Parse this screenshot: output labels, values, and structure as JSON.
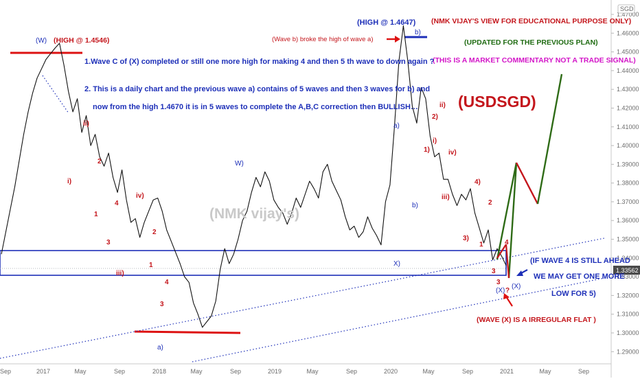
{
  "chart_data": {
    "type": "line",
    "title": "(USDSGD)",
    "ylim": [
      1.2835,
      1.4755
    ],
    "x_ticks": [
      "Sep",
      "2017",
      "May",
      "Sep",
      "2018",
      "May",
      "Sep",
      "2019",
      "May",
      "Sep",
      "2020",
      "May",
      "Sep",
      "2021",
      "May",
      "Sep"
    ],
    "y_ticks": [
      "1.47000",
      "1.46000",
      "1.45000",
      "1.44000",
      "1.43000",
      "1.42000",
      "1.41000",
      "1.40000",
      "1.39000",
      "1.38000",
      "1.37000",
      "1.36000",
      "1.35000",
      "1.34000",
      "1.33000",
      "1.32000",
      "1.31000",
      "1.30000",
      "1.29000"
    ],
    "currency_label": "SGD",
    "last_price": "1.33562",
    "series": [
      {
        "values": [
          1.342,
          1.354,
          1.366,
          1.378,
          1.392,
          1.406,
          1.418,
          1.428,
          1.436,
          1.441,
          1.446,
          1.449,
          1.452,
          1.4546,
          1.443,
          1.429,
          1.418,
          1.425,
          1.407,
          1.416,
          1.4,
          1.406,
          1.394,
          1.389,
          1.396,
          1.383,
          1.375,
          1.387,
          1.371,
          1.359,
          1.361,
          1.351,
          1.359,
          1.365,
          1.371,
          1.372,
          1.365,
          1.355,
          1.349,
          1.343,
          1.337,
          1.33,
          1.327,
          1.316,
          1.31,
          1.303,
          1.306,
          1.309,
          1.317,
          1.334,
          1.345,
          1.337,
          1.342,
          1.35,
          1.36,
          1.365,
          1.375,
          1.383,
          1.378,
          1.386,
          1.381,
          1.371,
          1.367,
          1.364,
          1.358,
          1.364,
          1.372,
          1.367,
          1.374,
          1.381,
          1.377,
          1.372,
          1.386,
          1.39,
          1.381,
          1.376,
          1.371,
          1.362,
          1.355,
          1.357,
          1.351,
          1.354,
          1.362,
          1.356,
          1.352,
          1.347,
          1.37,
          1.379,
          1.41,
          1.445,
          1.464,
          1.445,
          1.421,
          1.412,
          1.431,
          1.425,
          1.405,
          1.394,
          1.396,
          1.382,
          1.382,
          1.374,
          1.368,
          1.374,
          1.371,
          1.377,
          1.364,
          1.356,
          1.348,
          1.355,
          1.339,
          1.345,
          1.341,
          1.336
        ]
      }
    ]
  },
  "labels": {
    "wave_w_top": "(W)",
    "high_w": "(HIGH @ 1.4546)",
    "high_b": "(HIGH @ 1.4647)",
    "wave_b_broke": "(Wave b) broke the high of wave a)",
    "b_top": "b)",
    "note1": "1.Wave C of (X) completed or still one more high for making 4 and then 5 th wave to down again ?",
    "note2_line1": "2. This is a daily chart and the previous wave a) contains of 5 waves and then 3 waves for b) and",
    "note2_line2": "now from the high 1.4670 it is in 5 waves to complete the A,B,C correction then BULLISH…",
    "edu": "(NMK VIJAY'S VIEW FOR EDUCATIONAL PURPOSE ONLY)",
    "updated": "(UPDATED FOR THE PREVIOUS PLAN)",
    "commentary": "(THIS IS A MARKET COMMENTARY NOT A TRADE SIGNAL)",
    "watermark": "(NMK vijay's)",
    "if_wave4_line1": "(IF  WAVE 4 IS STILL AHEAD",
    "if_wave4_line2": "WE MAY GET ONE MORE",
    "if_wave4_line3": "LOW FOR 5)",
    "irregular_flat": "(WAVE (X) IS A IRREGULAR FLAT )",
    "w_mid": "W)",
    "a_low": "a)",
    "x_mid": "X)",
    "a_2020": "a)",
    "b_2020": "b)",
    "x_end1": "(X)",
    "x_end2": "(X)",
    "red_waves": [
      {
        "t": "ii)"
      },
      {
        "t": "i)"
      },
      {
        "t": "2"
      },
      {
        "t": "1"
      },
      {
        "t": "4"
      },
      {
        "t": "3"
      },
      {
        "t": "iv)"
      },
      {
        "t": "iii)"
      },
      {
        "t": "2"
      },
      {
        "t": "1"
      },
      {
        "t": "4"
      },
      {
        "t": "3"
      },
      {
        "t": "2)"
      },
      {
        "t": "ii)"
      },
      {
        "t": "1)"
      },
      {
        "t": "i)"
      },
      {
        "t": "iv)"
      },
      {
        "t": "iii)"
      },
      {
        "t": "4)"
      },
      {
        "t": "2"
      },
      {
        "t": "3)"
      },
      {
        "t": "1"
      },
      {
        "t": "4"
      },
      {
        "t": "3"
      },
      {
        "t": "3"
      },
      {
        "t": "?"
      }
    ]
  }
}
